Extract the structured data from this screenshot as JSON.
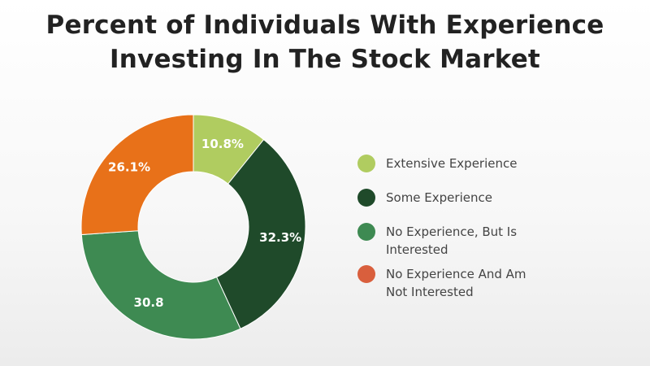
{
  "chart_data": {
    "type": "pie",
    "title": "Percent of Individuals With Experience Investing In The Stock Market",
    "donut": true,
    "legend_position": "right",
    "slices": [
      {
        "label": "Extensive Experience",
        "value": 10.8,
        "display": "10.8%",
        "color": "#b0cc60"
      },
      {
        "label": "Some Experience",
        "value": 32.3,
        "display": "32.3%",
        "color": "#1f4a2a"
      },
      {
        "label": "No Experience, But Is Interested",
        "value": 30.8,
        "display": "30.8",
        "color": "#3e8a52"
      },
      {
        "label": "No Experience And Am Not Interested",
        "value": 26.1,
        "display": "26.1%",
        "color": "#e87119"
      }
    ],
    "legend": [
      {
        "label": "Extensive Experience",
        "color": "#b0cc60"
      },
      {
        "label": "Some Experience",
        "color": "#1f4a2a"
      },
      {
        "label": "No Experience, But Is Interested",
        "color": "#3e8a52"
      },
      {
        "label": "No Experience And Am Not Interested",
        "color": "#d95f3d"
      }
    ]
  }
}
